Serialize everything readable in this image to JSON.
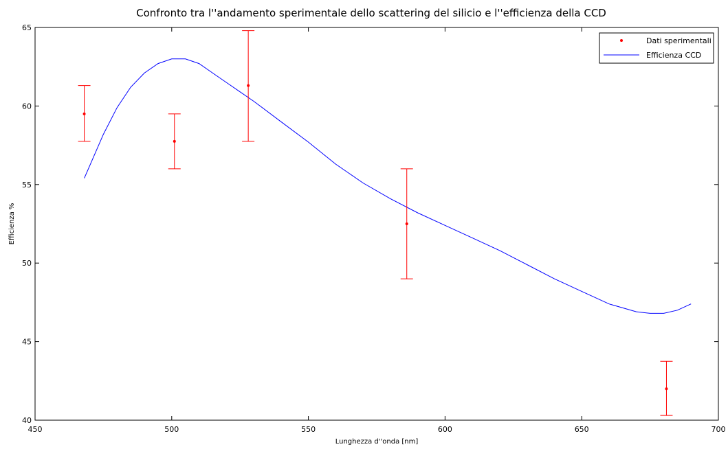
{
  "chart_data": {
    "type": "scatter",
    "title": "Confronto tra l''andamento sperimentale dello scattering del silicio e l''efficienza della CCD",
    "xlabel": "Lunghezza d''onda [nm]",
    "ylabel": "Efficienza %",
    "xlim": [
      450,
      700
    ],
    "ylim": [
      40,
      65
    ],
    "xticks": [
      450,
      500,
      550,
      600,
      650,
      700
    ],
    "yticks": [
      40,
      45,
      50,
      55,
      60,
      65
    ],
    "grid": false,
    "legend_position": "top-right",
    "series": [
      {
        "name": "Dati sperimentali",
        "kind": "errorbar",
        "color": "#ff0000",
        "marker": "dot",
        "x": [
          468,
          501,
          528,
          586,
          681
        ],
        "y": [
          59.5,
          57.75,
          61.3,
          52.5,
          42.0
        ],
        "yerr_low": [
          57.75,
          56.0,
          57.75,
          49.0,
          40.3
        ],
        "yerr_high": [
          61.3,
          59.5,
          64.8,
          56.0,
          43.75
        ]
      },
      {
        "name": "Efficienza CCD",
        "kind": "line",
        "color": "#0000ff",
        "x": [
          468,
          475,
          480,
          485,
          490,
          495,
          500,
          505,
          510,
          515,
          520,
          525,
          530,
          540,
          550,
          560,
          570,
          580,
          590,
          600,
          610,
          620,
          630,
          640,
          650,
          660,
          670,
          675,
          680,
          685,
          690
        ],
        "y": [
          55.4,
          58.2,
          59.9,
          61.2,
          62.1,
          62.7,
          63.0,
          63.0,
          62.7,
          62.1,
          61.5,
          60.9,
          60.3,
          59.0,
          57.7,
          56.3,
          55.1,
          54.1,
          53.2,
          52.4,
          51.6,
          50.8,
          49.9,
          49.0,
          48.2,
          47.4,
          46.9,
          46.8,
          46.8,
          47.0,
          47.4
        ]
      }
    ]
  }
}
